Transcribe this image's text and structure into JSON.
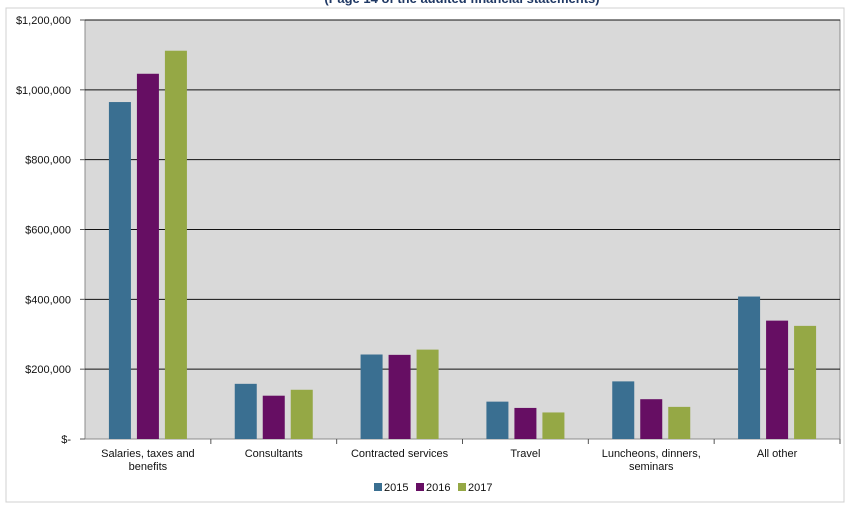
{
  "chart_data": {
    "type": "bar",
    "title": "(Page 14 of the audited financial statements)",
    "categories": [
      [
        "Salaries, taxes and",
        "benefits"
      ],
      [
        "Consultants"
      ],
      [
        "Contracted services"
      ],
      [
        "Travel"
      ],
      [
        "Luncheons, dinners,",
        "seminars"
      ],
      [
        "All other"
      ]
    ],
    "series": [
      {
        "name": "2015",
        "color": "#3a6f91",
        "values": [
          965000,
          158000,
          242000,
          107000,
          165000,
          408000
        ]
      },
      {
        "name": "2016",
        "color": "#660e63",
        "values": [
          1046000,
          124000,
          241000,
          89000,
          114000,
          339000
        ]
      },
      {
        "name": "2017",
        "color": "#95a845",
        "values": [
          1112000,
          141000,
          256000,
          76000,
          92000,
          324000
        ]
      }
    ],
    "ylim": [
      0,
      1200000
    ],
    "yticks": [
      0,
      200000,
      400000,
      600000,
      800000,
      1000000,
      1200000
    ],
    "ytick_labels": [
      "$-",
      "$200,000",
      "$400,000",
      "$600,000",
      "$800,000",
      "$1,000,000",
      "$1,200,000"
    ],
    "grid": true,
    "plot_background": "#d9d9d9",
    "legend_position": "bottom-center"
  }
}
